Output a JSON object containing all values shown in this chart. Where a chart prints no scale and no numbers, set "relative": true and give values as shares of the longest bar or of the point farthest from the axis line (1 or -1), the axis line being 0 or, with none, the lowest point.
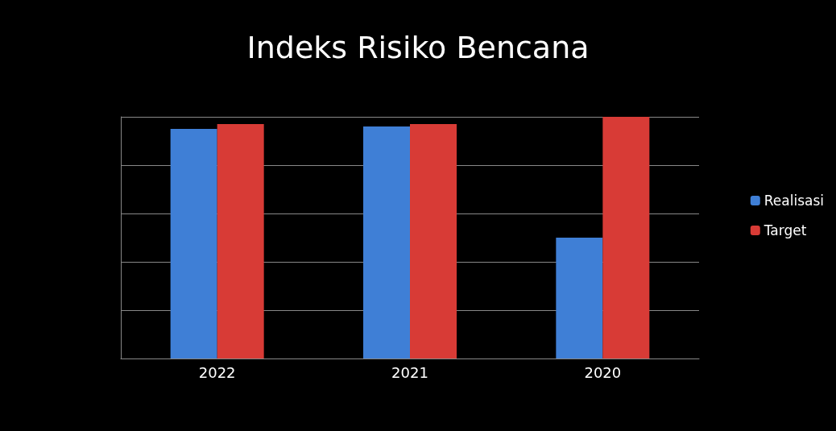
{
  "chart_data": {
    "type": "bar",
    "title": "Indeks Risiko Bencana",
    "categories": [
      "2022",
      "2021",
      "2020"
    ],
    "relative": true,
    "grid": "y",
    "legend": "right",
    "series": [
      {
        "name": "Realisasi",
        "color": "#3f7fd6",
        "values": [
          0.95,
          0.96,
          0.5
        ]
      },
      {
        "name": "Target",
        "color": "#d83b36",
        "values": [
          0.97,
          0.97,
          1
        ]
      }
    ]
  }
}
